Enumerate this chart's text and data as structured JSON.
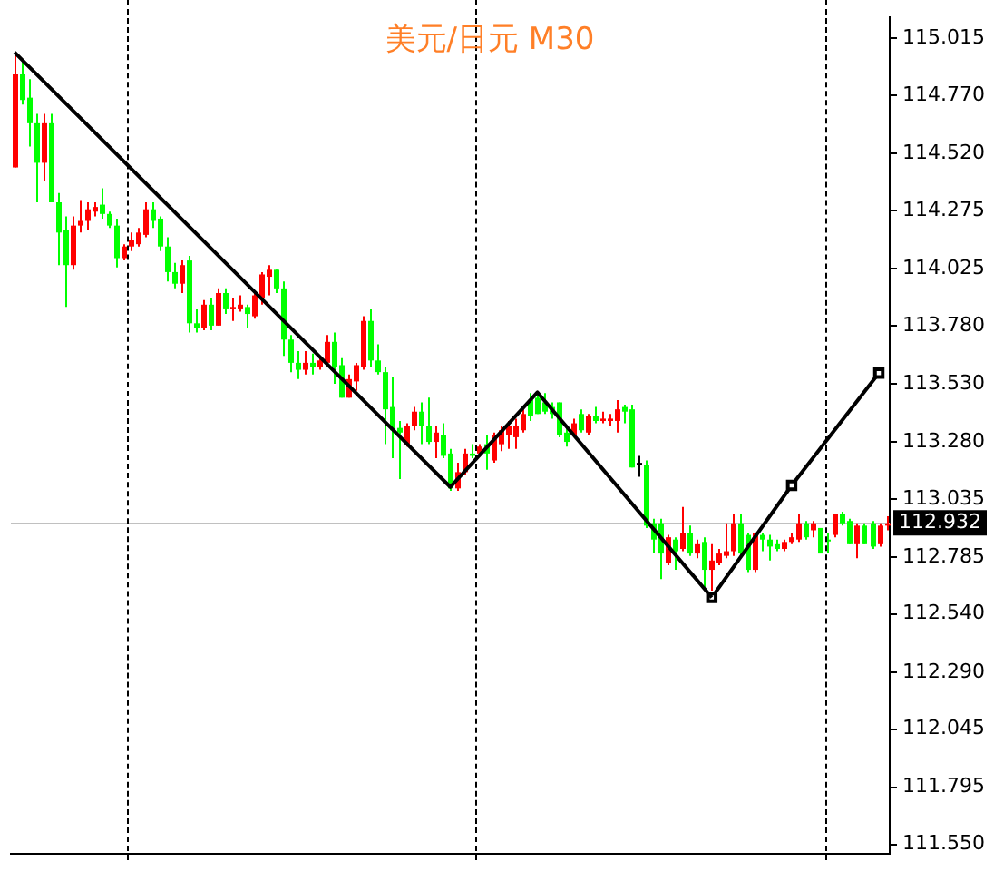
{
  "chart_data": {
    "type": "candlestick",
    "title": "美元/日元 M30",
    "categories": [
      null,
      null,
      null,
      null,
      null,
      null,
      null,
      null,
      null,
      null,
      null,
      null,
      null,
      null,
      null,
      null,
      null,
      null,
      null,
      null,
      null,
      null,
      null,
      null,
      null,
      null,
      null,
      null,
      null,
      null,
      null,
      null,
      null,
      null,
      null,
      null,
      null,
      null,
      null,
      null,
      null,
      null,
      null,
      null,
      null,
      null,
      null,
      null,
      null,
      null,
      null,
      null,
      null,
      null,
      null,
      null,
      null,
      null,
      null,
      null,
      null,
      null,
      null,
      null,
      null,
      null,
      null,
      null,
      null,
      null,
      null,
      null,
      null,
      null,
      null,
      null,
      null,
      null,
      null,
      null,
      null,
      null,
      null,
      null,
      null,
      null,
      null,
      null,
      null,
      null,
      null,
      null,
      null,
      null,
      null,
      null,
      null,
      null,
      null,
      null,
      null,
      null,
      null,
      null,
      null,
      null,
      null,
      null,
      null,
      null,
      null,
      null,
      null,
      null,
      null,
      null,
      null,
      null,
      null,
      null,
      null
    ],
    "ohlc": [
      [
        114.46,
        114.95,
        114.46,
        114.86
      ],
      [
        114.86,
        114.92,
        114.73,
        114.75
      ],
      [
        114.76,
        114.84,
        114.55,
        114.65
      ],
      [
        114.65,
        114.69,
        114.31,
        114.48
      ],
      [
        114.48,
        114.69,
        114.4,
        114.65
      ],
      [
        114.65,
        114.69,
        114.31,
        114.31
      ],
      [
        114.31,
        114.35,
        114.04,
        114.18
      ],
      [
        114.19,
        114.25,
        113.86,
        114.04
      ],
      [
        114.04,
        114.25,
        114.02,
        114.21
      ],
      [
        114.21,
        114.32,
        114.18,
        114.23
      ],
      [
        114.23,
        114.31,
        114.19,
        114.28
      ],
      [
        114.27,
        114.31,
        114.25,
        114.29
      ],
      [
        114.3,
        114.37,
        114.24,
        114.26
      ],
      [
        114.26,
        114.27,
        114.2,
        114.21
      ],
      [
        114.21,
        114.24,
        114.03,
        114.07
      ],
      [
        114.07,
        114.13,
        114.06,
        114.12
      ],
      [
        114.12,
        114.18,
        114.1,
        114.15
      ],
      [
        114.13,
        114.2,
        114.12,
        114.18
      ],
      [
        114.17,
        114.31,
        114.16,
        114.28
      ],
      [
        114.28,
        114.31,
        114.2,
        114.23
      ],
      [
        114.24,
        114.25,
        114.1,
        114.12
      ],
      [
        114.12,
        114.16,
        113.97,
        114.01
      ],
      [
        114.01,
        114.05,
        113.94,
        113.96
      ],
      [
        113.96,
        114.06,
        113.92,
        114.04
      ],
      [
        114.06,
        114.08,
        113.75,
        113.79
      ],
      [
        113.79,
        113.85,
        113.75,
        113.77
      ],
      [
        113.77,
        113.89,
        113.76,
        113.87
      ],
      [
        113.87,
        113.9,
        113.76,
        113.78
      ],
      [
        113.78,
        113.94,
        113.78,
        113.92
      ],
      [
        113.92,
        113.94,
        113.83,
        113.85
      ],
      [
        113.85,
        113.9,
        113.8,
        113.86
      ],
      [
        113.85,
        113.91,
        113.84,
        113.87
      ],
      [
        113.86,
        113.87,
        113.77,
        113.83
      ],
      [
        113.82,
        113.92,
        113.81,
        113.91
      ],
      [
        113.9,
        114.01,
        113.87,
        114.0
      ],
      [
        113.99,
        114.04,
        113.91,
        114.02
      ],
      [
        114.02,
        114.02,
        113.92,
        113.94
      ],
      [
        113.94,
        113.97,
        113.65,
        113.72
      ],
      [
        113.72,
        113.74,
        113.58,
        113.62
      ],
      [
        113.62,
        113.67,
        113.55,
        113.59
      ],
      [
        113.59,
        113.67,
        113.57,
        113.62
      ],
      [
        113.62,
        113.66,
        113.57,
        113.6
      ],
      [
        113.6,
        113.64,
        113.59,
        113.63
      ],
      [
        113.62,
        113.74,
        113.61,
        113.71
      ],
      [
        113.71,
        113.75,
        113.53,
        113.6
      ],
      [
        113.61,
        113.64,
        113.47,
        113.47
      ],
      [
        113.47,
        113.57,
        113.47,
        113.55
      ],
      [
        113.54,
        113.62,
        113.5,
        113.61
      ],
      [
        113.6,
        113.82,
        113.59,
        113.8
      ],
      [
        113.8,
        113.85,
        113.6,
        113.63
      ],
      [
        113.63,
        113.7,
        113.57,
        113.58
      ],
      [
        113.58,
        113.6,
        113.27,
        113.42
      ],
      [
        113.43,
        113.56,
        113.21,
        113.33
      ],
      [
        113.34,
        113.37,
        113.12,
        113.32
      ],
      [
        113.27,
        113.36,
        113.26,
        113.35
      ],
      [
        113.35,
        113.43,
        113.33,
        113.41
      ],
      [
        113.41,
        113.45,
        113.27,
        113.35
      ],
      [
        113.35,
        113.47,
        113.27,
        113.28
      ],
      [
        113.28,
        113.35,
        113.21,
        113.32
      ],
      [
        113.31,
        113.36,
        113.21,
        113.22
      ],
      [
        113.23,
        113.25,
        113.07,
        113.08
      ],
      [
        113.08,
        113.19,
        113.07,
        113.15
      ],
      [
        113.15,
        113.25,
        113.14,
        113.23
      ],
      [
        113.23,
        113.27,
        113.21,
        113.22
      ],
      [
        113.23,
        113.27,
        113.22,
        113.26
      ],
      [
        113.27,
        113.31,
        113.16,
        113.23
      ],
      [
        113.2,
        113.32,
        113.19,
        113.31
      ],
      [
        113.27,
        113.35,
        113.24,
        113.33
      ],
      [
        113.31,
        113.37,
        113.25,
        113.35
      ],
      [
        113.3,
        113.38,
        113.25,
        113.35
      ],
      [
        113.33,
        113.42,
        113.32,
        113.4
      ],
      [
        113.46,
        113.49,
        113.37,
        113.39
      ],
      [
        113.47,
        113.49,
        113.4,
        113.4
      ],
      [
        113.45,
        113.49,
        113.4,
        113.41
      ],
      [
        113.43,
        113.45,
        113.38,
        113.4
      ],
      [
        113.45,
        113.45,
        113.3,
        113.31
      ],
      [
        113.32,
        113.34,
        113.26,
        113.28
      ],
      [
        113.31,
        113.38,
        113.3,
        113.36
      ],
      [
        113.4,
        113.42,
        113.32,
        113.33
      ],
      [
        113.32,
        113.4,
        113.31,
        113.39
      ],
      [
        113.39,
        113.43,
        113.36,
        113.37
      ],
      [
        113.37,
        113.41,
        113.36,
        113.38
      ],
      [
        113.37,
        113.4,
        113.35,
        113.38
      ],
      [
        113.37,
        113.46,
        113.32,
        113.42
      ],
      [
        113.43,
        113.44,
        113.36,
        113.41
      ],
      [
        113.42,
        113.44,
        113.17,
        113.17
      ],
      [
        113.19,
        113.22,
        113.13,
        113.19
      ],
      [
        113.18,
        113.2,
        112.91,
        112.92
      ],
      [
        112.93,
        112.95,
        112.8,
        112.86
      ],
      [
        112.93,
        112.95,
        112.69,
        112.8
      ],
      [
        112.76,
        112.88,
        112.75,
        112.87
      ],
      [
        112.86,
        112.87,
        112.73,
        112.81
      ],
      [
        112.82,
        113.0,
        112.81,
        112.89
      ],
      [
        112.89,
        112.92,
        112.79,
        112.8
      ],
      [
        112.8,
        112.86,
        112.78,
        112.84
      ],
      [
        112.85,
        112.87,
        112.64,
        112.73
      ],
      [
        112.73,
        112.84,
        112.64,
        112.77
      ],
      [
        112.76,
        112.82,
        112.75,
        112.8
      ],
      [
        112.79,
        112.93,
        112.78,
        112.81
      ],
      [
        112.81,
        112.97,
        112.79,
        112.93
      ],
      [
        112.93,
        112.97,
        112.78,
        112.8
      ],
      [
        112.88,
        112.89,
        112.72,
        112.73
      ],
      [
        112.73,
        112.89,
        112.72,
        112.89
      ],
      [
        112.88,
        112.89,
        112.81,
        112.86
      ],
      [
        112.86,
        112.88,
        112.77,
        112.83
      ],
      [
        112.84,
        112.86,
        112.81,
        112.82
      ],
      [
        112.82,
        112.86,
        112.81,
        112.85
      ],
      [
        112.85,
        112.89,
        112.84,
        112.87
      ],
      [
        112.86,
        112.97,
        112.85,
        112.93
      ],
      [
        112.93,
        112.94,
        112.86,
        112.87
      ],
      [
        112.9,
        112.94,
        112.87,
        112.93
      ],
      [
        112.91,
        112.91,
        112.8,
        112.8
      ],
      [
        112.86,
        112.89,
        112.8,
        112.86
      ],
      [
        112.88,
        112.97,
        112.87,
        112.97
      ],
      [
        112.97,
        112.98,
        112.92,
        112.93
      ],
      [
        112.94,
        112.95,
        112.84,
        112.84
      ],
      [
        112.84,
        112.93,
        112.78,
        112.92
      ],
      [
        112.92,
        112.93,
        112.84,
        112.84
      ],
      [
        112.93,
        112.94,
        112.82,
        112.83
      ],
      [
        112.84,
        112.93,
        112.83,
        112.92
      ],
      [
        112.92,
        112.96,
        112.9,
        112.93
      ]
    ],
    "colors": [
      "#ff0000",
      "#00ff00",
      "#00ff00",
      "#00ff00",
      "#ff0000",
      "#00ff00",
      "#00ff00",
      "#00ff00",
      "#ff0000",
      "#ff0000",
      "#ff0000",
      "#ff0000",
      "#00ff00",
      "#00ff00",
      "#00ff00",
      "#ff0000",
      "#ff0000",
      "#ff0000",
      "#ff0000",
      "#00ff00",
      "#00ff00",
      "#00ff00",
      "#00ff00",
      "#ff0000",
      "#00ff00",
      "#00ff00",
      "#ff0000",
      "#00ff00",
      "#ff0000",
      "#00ff00",
      "#ff0000",
      "#ff0000",
      "#00ff00",
      "#ff0000",
      "#ff0000",
      "#ff0000",
      "#00ff00",
      "#00ff00",
      "#00ff00",
      "#00ff00",
      "#ff0000",
      "#00ff00",
      "#ff0000",
      "#ff0000",
      "#00ff00",
      "#00ff00",
      "#ff0000",
      "#ff0000",
      "#ff0000",
      "#00ff00",
      "#00ff00",
      "#00ff00",
      "#00ff00",
      "#00ff00",
      "#ff0000",
      "#ff0000",
      "#00ff00",
      "#00ff00",
      "#ff0000",
      "#00ff00",
      "#00ff00",
      "#ff0000",
      "#ff0000",
      "#00ff00",
      "#ff0000",
      "#00ff00",
      "#ff0000",
      "#ff0000",
      "#ff0000",
      "#ff0000",
      "#ff0000",
      "#00ff00",
      "#00ff00",
      "#00ff00",
      "#00ff00",
      "#00ff00",
      "#00ff00",
      "#ff0000",
      "#00ff00",
      "#ff0000",
      "#00ff00",
      "#ff0000",
      "#ff0000",
      "#ff0000",
      "#00ff00",
      "#00ff00",
      "#000000",
      "#00ff00",
      "#00ff00",
      "#00ff00",
      "#ff0000",
      "#00ff00",
      "#ff0000",
      "#00ff00",
      "#ff0000",
      "#00ff00",
      "#ff0000",
      "#ff0000",
      "#ff0000",
      "#ff0000",
      "#00ff00",
      "#00ff00",
      "#ff0000",
      "#00ff00",
      "#00ff00",
      "#00ff00",
      "#ff0000",
      "#ff0000",
      "#ff0000",
      "#00ff00",
      "#ff0000",
      "#00ff00",
      "#00ff00",
      "#ff0000",
      "#00ff00",
      "#00ff00",
      "#ff0000",
      "#00ff00",
      "#00ff00",
      "#ff0000",
      "#ff0000"
    ],
    "series": [
      {
        "type": "line",
        "color": "#000000",
        "marker": "none",
        "values": [
          114.955,
          null,
          null,
          null,
          null,
          null,
          null,
          null,
          null,
          null,
          null,
          null,
          null,
          null,
          null,
          null,
          null,
          null,
          null,
          null,
          null,
          null,
          null,
          null,
          null,
          null,
          null,
          null,
          null,
          null,
          null,
          null,
          null,
          null,
          null,
          null,
          null,
          null,
          null,
          null,
          null,
          null,
          null,
          null,
          null,
          null,
          null,
          null,
          null,
          null,
          null,
          null,
          null,
          null,
          null,
          null,
          null,
          null,
          null,
          null,
          113.086,
          null,
          null,
          null,
          null,
          null,
          null,
          null,
          null,
          null,
          null,
          null,
          113.493,
          null,
          null,
          null,
          null,
          null,
          null,
          null,
          null,
          null,
          null,
          null,
          null,
          null,
          null,
          null,
          null,
          null,
          null,
          null,
          null,
          null,
          null,
          null,
          112.611,
          null,
          null,
          null,
          null,
          null,
          null,
          null,
          null,
          null,
          null,
          null,
          null,
          null,
          null,
          null,
          null,
          null,
          null,
          null,
          null,
          null,
          null,
          null,
          null
        ]
      },
      {
        "type": "line",
        "color": "#000000",
        "marker": "square",
        "values": [
          null,
          null,
          null,
          null,
          null,
          null,
          null,
          null,
          null,
          null,
          null,
          null,
          null,
          null,
          null,
          null,
          null,
          null,
          null,
          null,
          null,
          null,
          null,
          null,
          null,
          null,
          null,
          null,
          null,
          null,
          null,
          null,
          null,
          null,
          null,
          null,
          null,
          null,
          null,
          null,
          null,
          null,
          null,
          null,
          null,
          null,
          null,
          null,
          null,
          null,
          null,
          null,
          null,
          null,
          null,
          null,
          null,
          null,
          null,
          null,
          null,
          null,
          null,
          null,
          null,
          null,
          null,
          null,
          null,
          null,
          null,
          null,
          null,
          null,
          null,
          null,
          null,
          null,
          null,
          null,
          null,
          null,
          null,
          null,
          null,
          null,
          null,
          null,
          null,
          null,
          null,
          null,
          null,
          null,
          null,
          null,
          112.611,
          null,
          null,
          null,
          null,
          null,
          null,
          null,
          null,
          null,
          null,
          113.093,
          null,
          null,
          null,
          null,
          null,
          null,
          null,
          null,
          null,
          null,
          null,
          113.576,
          null
        ]
      }
    ],
    "ref_lines": [
      {
        "axis": "y",
        "value": 112.932,
        "label": "112.932",
        "color": "#c0c0c0"
      }
    ],
    "ylim": [
      111.51,
      115.105
    ],
    "yticks": [
      {
        "value": 115.015,
        "label": "115.015"
      },
      {
        "value": 114.77,
        "label": "114.770"
      },
      {
        "value": 114.52,
        "label": "114.520"
      },
      {
        "value": 114.275,
        "label": "114.275"
      },
      {
        "value": 114.025,
        "label": "114.025"
      },
      {
        "value": 113.78,
        "label": "113.780"
      },
      {
        "value": 113.53,
        "label": "113.530"
      },
      {
        "value": 113.28,
        "label": "113.280"
      },
      {
        "value": 113.035,
        "label": "113.035"
      },
      {
        "value": 112.785,
        "label": "112.785"
      },
      {
        "value": 112.54,
        "label": "112.540"
      },
      {
        "value": 112.29,
        "label": "112.290"
      },
      {
        "value": 112.045,
        "label": "112.045"
      },
      {
        "value": 111.795,
        "label": "111.795"
      },
      {
        "value": 111.55,
        "label": "111.550"
      }
    ],
    "tick_labels": "y",
    "grid": false,
    "legend": false
  }
}
